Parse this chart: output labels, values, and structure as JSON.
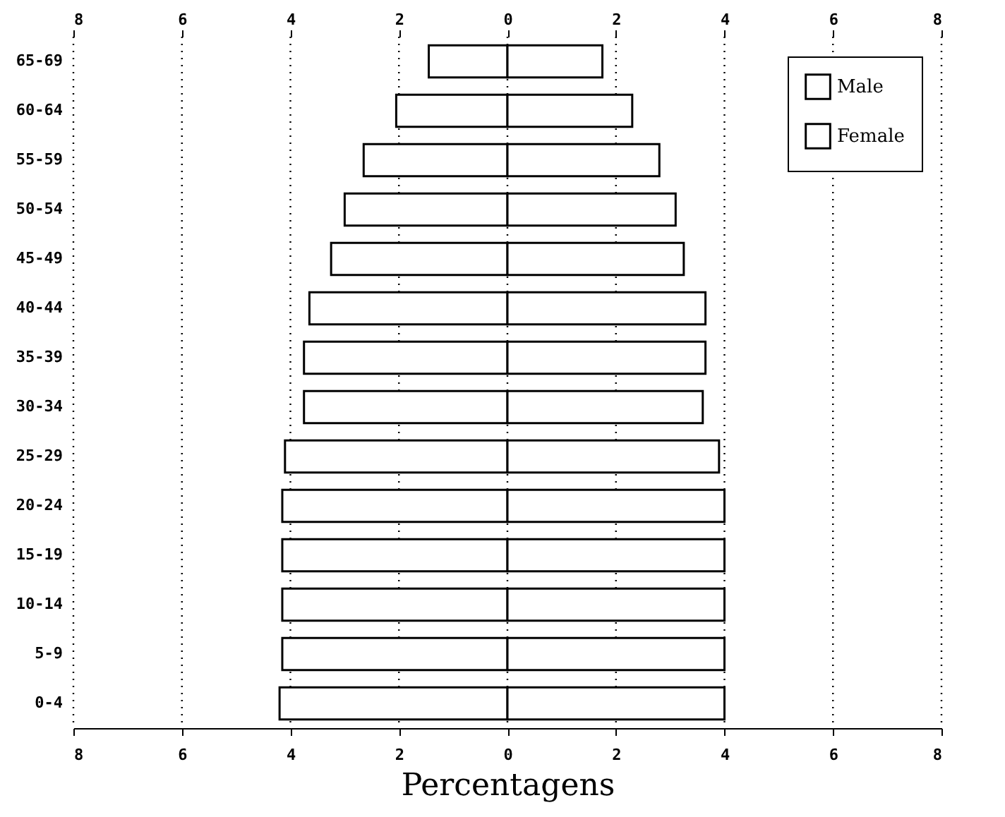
{
  "chart_data": {
    "type": "bar",
    "orientation": "horizontal",
    "xlabel": "Percentagens",
    "categories": [
      "65-69",
      "60-64",
      "55-59",
      "50-54",
      "45-49",
      "40-44",
      "35-39",
      "30-34",
      "25-29",
      "20-24",
      "15-19",
      "10-14",
      "5-9",
      "0-4"
    ],
    "series": [
      {
        "name": "Male",
        "color": "#ffffff",
        "values": [
          -1.45,
          -2.05,
          -2.65,
          -3.0,
          -3.25,
          -3.65,
          -3.75,
          -3.75,
          -4.1,
          -4.15,
          -4.15,
          -4.15,
          -4.15,
          -4.2
        ]
      },
      {
        "name": "Female",
        "color": "#ffffff",
        "values": [
          1.75,
          2.3,
          2.8,
          3.1,
          3.25,
          3.65,
          3.65,
          3.6,
          3.9,
          4.0,
          4.0,
          4.0,
          4.0,
          4.0
        ]
      }
    ],
    "xlim": [
      -8,
      8
    ],
    "xticks": [
      {
        "value": -8,
        "label": "8"
      },
      {
        "value": -6,
        "label": "6"
      },
      {
        "value": -4,
        "label": "4"
      },
      {
        "value": -2,
        "label": "2"
      },
      0,
      2,
      4,
      6,
      8
    ],
    "x2lim": [
      -8,
      8
    ],
    "x2ticks": [
      {
        "value": -8,
        "label": "8"
      },
      {
        "value": -6,
        "label": "6"
      },
      {
        "value": -4,
        "label": "4"
      },
      {
        "value": -2,
        "label": "2"
      },
      0,
      2,
      4,
      6,
      8
    ],
    "stacked": true,
    "grid": "x",
    "legend": "top right"
  }
}
